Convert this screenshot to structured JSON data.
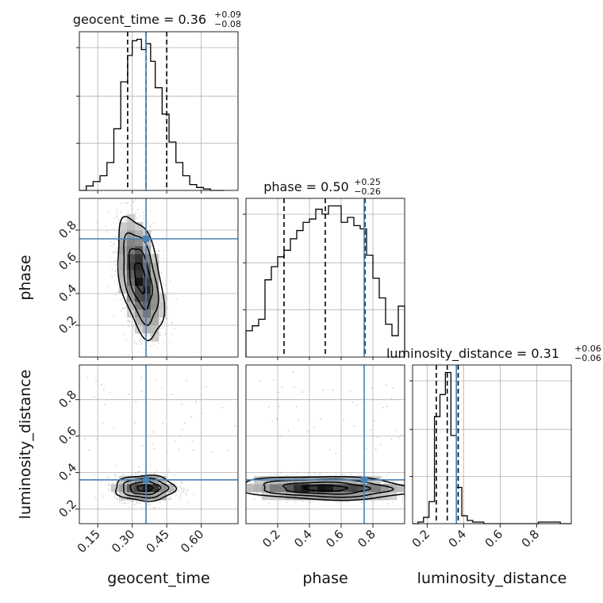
{
  "chart_data": {
    "type": "corner",
    "parameters": [
      "geocent_time",
      "phase",
      "luminosity_distance"
    ],
    "ranges": {
      "geocent_time": [
        0.07,
        0.76
      ],
      "phase": [
        0.0,
        1.0
      ],
      "luminosity_distance": [
        0.12,
        0.99
      ]
    },
    "truths": {
      "geocent_time": 0.36,
      "phase": 0.745,
      "luminosity_distance": 0.36
    },
    "truth_color": "#4682b4",
    "grid": true,
    "titles": [
      {
        "param": "geocent_time",
        "label": "geocent_time = 0.36",
        "plus": "+0.09",
        "minus": "−0.08",
        "median": 0.36,
        "low": 0.28,
        "high": 0.45
      },
      {
        "param": "phase",
        "label": "phase = 0.50",
        "plus": "+0.25",
        "minus": "−0.26",
        "median": 0.5,
        "low": 0.24,
        "high": 0.75
      },
      {
        "param": "luminosity_distance",
        "label": "luminosity_distance = 0.31",
        "plus": "+0.06",
        "minus": "−0.06",
        "median": 0.31,
        "low": 0.25,
        "high": 0.37
      }
    ],
    "ticks": {
      "geocent_time": {
        "values": [
          0.15,
          0.3,
          0.45,
          0.6
        ],
        "labels": [
          "0.15",
          "0.30",
          "0.45",
          "0.60"
        ]
      },
      "phase": {
        "values": [
          0.2,
          0.4,
          0.6,
          0.8
        ],
        "labels": [
          "0.2",
          "0.4",
          "0.6",
          "0.8"
        ]
      },
      "luminosity_distance": {
        "values": [
          0.2,
          0.4,
          0.6,
          0.8
        ],
        "labels": [
          "0.2",
          "0.4",
          "0.6",
          "0.8"
        ]
      }
    },
    "histograms": {
      "geocent_time": {
        "bins": [
          0.07,
          0.1,
          0.13,
          0.16,
          0.19,
          0.22,
          0.25,
          0.28,
          0.3,
          0.32,
          0.34,
          0.36,
          0.38,
          0.4,
          0.43,
          0.46,
          0.49,
          0.52,
          0.55,
          0.58,
          0.61,
          0.64,
          0.67,
          0.7
        ],
        "counts": [
          0.0,
          0.03,
          0.06,
          0.1,
          0.19,
          0.42,
          0.74,
          0.92,
          1.02,
          1.03,
          0.96,
          1.0,
          0.88,
          0.7,
          0.52,
          0.33,
          0.19,
          0.1,
          0.04,
          0.02,
          0.01,
          0.0,
          0.0
        ]
      },
      "phase": {
        "bins": [
          0.0,
          0.04,
          0.08,
          0.12,
          0.16,
          0.2,
          0.24,
          0.28,
          0.32,
          0.36,
          0.4,
          0.44,
          0.48,
          0.52,
          0.56,
          0.6,
          0.64,
          0.68,
          0.72,
          0.76,
          0.8,
          0.84,
          0.88,
          0.92,
          0.96,
          1.0
        ],
        "counts": [
          0.16,
          0.19,
          0.23,
          0.47,
          0.55,
          0.61,
          0.65,
          0.72,
          0.77,
          0.82,
          0.84,
          0.9,
          0.87,
          0.92,
          0.92,
          0.82,
          0.85,
          0.8,
          0.78,
          0.62,
          0.48,
          0.36,
          0.2,
          0.13,
          0.31
        ]
      },
      "luminosity_distance": {
        "bins": [
          0.12,
          0.15,
          0.18,
          0.21,
          0.24,
          0.27,
          0.3,
          0.33,
          0.36,
          0.39,
          0.42,
          0.45,
          0.48,
          0.51,
          0.54,
          0.57,
          0.6,
          0.63,
          0.66,
          0.69,
          0.72,
          0.75,
          0.78,
          0.81,
          0.84,
          0.87,
          0.9,
          0.93,
          0.96,
          0.99
        ],
        "counts": [
          0.0,
          0.01,
          0.04,
          0.14,
          0.68,
          0.82,
          0.96,
          0.56,
          0.23,
          0.05,
          0.02,
          0.01,
          0.01,
          0.0,
          0.0,
          0.0,
          0.0,
          0.0,
          0.0,
          0.0,
          0.0,
          0.0,
          0.0,
          0.01,
          0.01,
          0.01,
          0.01,
          0.0,
          0.0
        ]
      }
    },
    "joint": [
      {
        "x": "geocent_time",
        "y": "phase",
        "center": [
          0.335,
          0.5
        ],
        "sigma": [
          0.05,
          0.19
        ],
        "rho": -0.45,
        "contours": [
          0.5,
          1.0,
          1.5,
          2.0
        ]
      },
      {
        "x": "geocent_time",
        "y": "luminosity_distance",
        "center": [
          0.355,
          0.315
        ],
        "sigma": [
          0.065,
          0.035
        ],
        "rho": 0.0,
        "contours": [
          0.5,
          1.0,
          1.5,
          2.0
        ]
      },
      {
        "x": "phase",
        "y": "luminosity_distance",
        "center": [
          0.5,
          0.315
        ],
        "sigma": [
          0.27,
          0.032
        ],
        "rho": -0.12,
        "contours": [
          0.5,
          1.0,
          1.5,
          2.0
        ]
      }
    ]
  }
}
